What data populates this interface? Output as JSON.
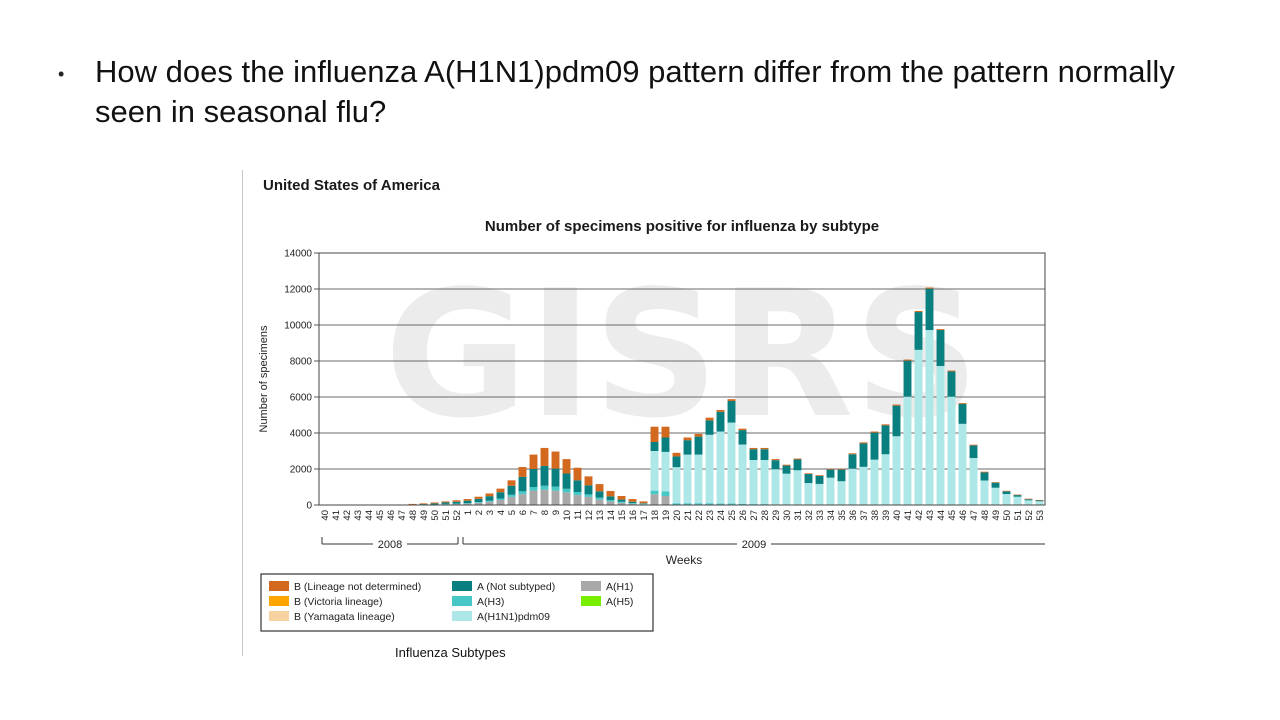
{
  "slide": {
    "bullet": "•",
    "question": "How does the influenza A(H1N1)pdm09 pattern differ from the pattern normally seen in seasonal flu?"
  },
  "figure": {
    "country": "United States of America",
    "legend_caption": "Influenza Subtypes",
    "watermark": "GISRS"
  },
  "colors": {
    "B_lineage_not_determined": "#d2691e",
    "B_victoria": "#ffa500",
    "B_yamagata": "#f8d3a2",
    "A_not_subtyped": "#0a7f80",
    "A_H3": "#48c7c7",
    "A_H1N1pdm09": "#aee7e8",
    "A_H1": "#a8a8a8",
    "A_H5": "#77ee00"
  },
  "chart_data": {
    "type": "bar",
    "stacked": true,
    "title": "Number of specimens positive for influenza by subtype",
    "xlabel": "Weeks",
    "ylabel": "Number of specimens",
    "ylim": [
      0,
      14000
    ],
    "yticks": [
      0,
      2000,
      4000,
      6000,
      8000,
      10000,
      12000,
      14000
    ],
    "grid": true,
    "year_groups": [
      {
        "label": "2008",
        "from": "40",
        "to": "52"
      },
      {
        "label": "2009",
        "from": "1",
        "to": "53"
      }
    ],
    "categories": [
      "40",
      "41",
      "42",
      "43",
      "44",
      "45",
      "46",
      "47",
      "48",
      "49",
      "50",
      "51",
      "52",
      "1",
      "2",
      "3",
      "4",
      "5",
      "6",
      "7",
      "8",
      "9",
      "10",
      "11",
      "12",
      "13",
      "14",
      "15",
      "16",
      "17",
      "18",
      "19",
      "20",
      "21",
      "22",
      "23",
      "24",
      "25",
      "26",
      "27",
      "28",
      "29",
      "30",
      "31",
      "32",
      "33",
      "34",
      "35",
      "36",
      "37",
      "38",
      "39",
      "40",
      "41",
      "42",
      "43",
      "44",
      "45",
      "46",
      "47",
      "48",
      "49",
      "50",
      "51",
      "52",
      "53"
    ],
    "series": [
      {
        "name": "A(H1)",
        "color_key": "A_H1",
        "values": [
          0,
          0,
          0,
          0,
          0,
          0,
          0,
          0,
          10,
          20,
          30,
          50,
          60,
          80,
          120,
          180,
          280,
          450,
          600,
          800,
          850,
          800,
          700,
          550,
          450,
          300,
          200,
          120,
          70,
          40,
          600,
          500,
          0,
          0,
          0,
          0,
          0,
          0,
          0,
          0,
          0,
          0,
          0,
          0,
          0,
          0,
          0,
          0,
          0,
          0,
          0,
          0,
          0,
          0,
          0,
          0,
          0,
          0,
          0,
          0,
          0,
          0,
          0,
          0,
          0,
          0
        ]
      },
      {
        "name": "A(H3)",
        "color_key": "A_H3",
        "values": [
          0,
          0,
          0,
          0,
          0,
          0,
          0,
          0,
          0,
          0,
          0,
          10,
          20,
          30,
          40,
          60,
          80,
          120,
          160,
          200,
          220,
          220,
          200,
          170,
          140,
          110,
          80,
          60,
          40,
          30,
          200,
          250,
          100,
          100,
          100,
          100,
          80,
          80,
          60,
          50,
          50,
          40,
          40,
          30,
          20,
          20,
          20,
          20,
          20,
          20,
          20,
          20,
          20,
          20,
          20,
          20,
          20,
          20,
          10,
          10,
          10,
          10,
          10,
          10,
          10,
          10
        ]
      },
      {
        "name": "A(H1N1)pdm09",
        "color_key": "A_H1N1pdm09",
        "values": [
          0,
          0,
          0,
          0,
          0,
          0,
          0,
          0,
          0,
          0,
          0,
          0,
          0,
          0,
          0,
          0,
          0,
          0,
          0,
          0,
          0,
          0,
          0,
          0,
          0,
          0,
          0,
          0,
          0,
          0,
          2200,
          2200,
          2000,
          2700,
          2700,
          3800,
          4000,
          4500,
          3300,
          2450,
          2450,
          1950,
          1700,
          1900,
          1200,
          1150,
          1500,
          1300,
          2000,
          2100,
          2500,
          2800,
          3800,
          6000,
          8600,
          9700,
          7700,
          6000,
          4500,
          2600,
          1350,
          950,
          600,
          450,
          250,
          200
        ]
      },
      {
        "name": "A (Not subtyped)",
        "color_key": "A_not_subtyped",
        "values": [
          0,
          0,
          0,
          0,
          0,
          0,
          0,
          0,
          20,
          30,
          60,
          80,
          100,
          130,
          180,
          250,
          350,
          500,
          800,
          1000,
          1100,
          1000,
          850,
          650,
          500,
          350,
          200,
          120,
          70,
          30,
          500,
          800,
          600,
          800,
          1000,
          800,
          1100,
          1200,
          800,
          600,
          600,
          500,
          450,
          600,
          500,
          450,
          450,
          650,
          800,
          1300,
          1500,
          1600,
          1700,
          2000,
          2100,
          2300,
          2000,
          1400,
          1100,
          700,
          450,
          280,
          150,
          90,
          60,
          40
        ]
      },
      {
        "name": "B (Yamagata lineage)",
        "color_key": "B_yamagata",
        "values": [
          0,
          0,
          0,
          0,
          0,
          0,
          0,
          0,
          0,
          0,
          0,
          0,
          0,
          0,
          0,
          0,
          0,
          0,
          0,
          0,
          0,
          0,
          0,
          0,
          0,
          0,
          0,
          0,
          0,
          0,
          0,
          0,
          0,
          0,
          0,
          0,
          0,
          0,
          0,
          0,
          0,
          0,
          0,
          0,
          0,
          0,
          0,
          0,
          0,
          0,
          0,
          0,
          0,
          0,
          0,
          0,
          0,
          0,
          0,
          0,
          0,
          0,
          0,
          0,
          0,
          0
        ]
      },
      {
        "name": "B (Victoria lineage)",
        "color_key": "B_victoria",
        "values": [
          0,
          0,
          0,
          0,
          0,
          0,
          0,
          0,
          0,
          0,
          0,
          0,
          0,
          0,
          0,
          0,
          0,
          0,
          0,
          0,
          0,
          0,
          0,
          0,
          0,
          0,
          0,
          0,
          0,
          0,
          0,
          0,
          0,
          0,
          0,
          0,
          0,
          0,
          0,
          0,
          0,
          0,
          0,
          0,
          0,
          0,
          0,
          0,
          0,
          0,
          0,
          0,
          0,
          0,
          0,
          0,
          0,
          0,
          0,
          0,
          0,
          0,
          0,
          0,
          0,
          0
        ]
      },
      {
        "name": "B (Lineage not determined)",
        "color_key": "B_lineage_not_determined",
        "values": [
          0,
          0,
          0,
          10,
          10,
          10,
          10,
          10,
          30,
          40,
          50,
          60,
          80,
          90,
          120,
          150,
          200,
          300,
          550,
          800,
          1000,
          950,
          800,
          700,
          500,
          400,
          300,
          200,
          150,
          100,
          850,
          600,
          200,
          150,
          150,
          150,
          100,
          100,
          80,
          70,
          70,
          60,
          50,
          50,
          40,
          40,
          40,
          40,
          50,
          60,
          60,
          60,
          60,
          60,
          60,
          60,
          50,
          50,
          50,
          40,
          40,
          30,
          30,
          30,
          30,
          30
        ]
      },
      {
        "name": "A(H5)",
        "color_key": "A_H5",
        "values": [
          0,
          0,
          0,
          0,
          0,
          0,
          0,
          0,
          0,
          0,
          0,
          0,
          0,
          0,
          0,
          0,
          0,
          0,
          0,
          0,
          0,
          0,
          0,
          0,
          0,
          0,
          0,
          0,
          0,
          0,
          0,
          0,
          0,
          0,
          0,
          0,
          0,
          0,
          0,
          0,
          0,
          0,
          0,
          0,
          0,
          0,
          0,
          0,
          0,
          0,
          0,
          0,
          0,
          0,
          0,
          0,
          0,
          0,
          0,
          0,
          0,
          0,
          0,
          0,
          0,
          0
        ]
      }
    ],
    "legend": [
      {
        "label": "B (Lineage not determined)",
        "color_key": "B_lineage_not_determined"
      },
      {
        "label": "A (Not subtyped)",
        "color_key": "A_not_subtyped"
      },
      {
        "label": "A(H1)",
        "color_key": "A_H1"
      },
      {
        "label": "B (Victoria lineage)",
        "color_key": "B_victoria"
      },
      {
        "label": "A(H3)",
        "color_key": "A_H3"
      },
      {
        "label": "A(H5)",
        "color_key": "A_H5"
      },
      {
        "label": "B (Yamagata lineage)",
        "color_key": "B_yamagata"
      },
      {
        "label": "A(H1N1)pdm09",
        "color_key": "A_H1N1pdm09"
      }
    ],
    "legend_position": "bottom-left"
  }
}
